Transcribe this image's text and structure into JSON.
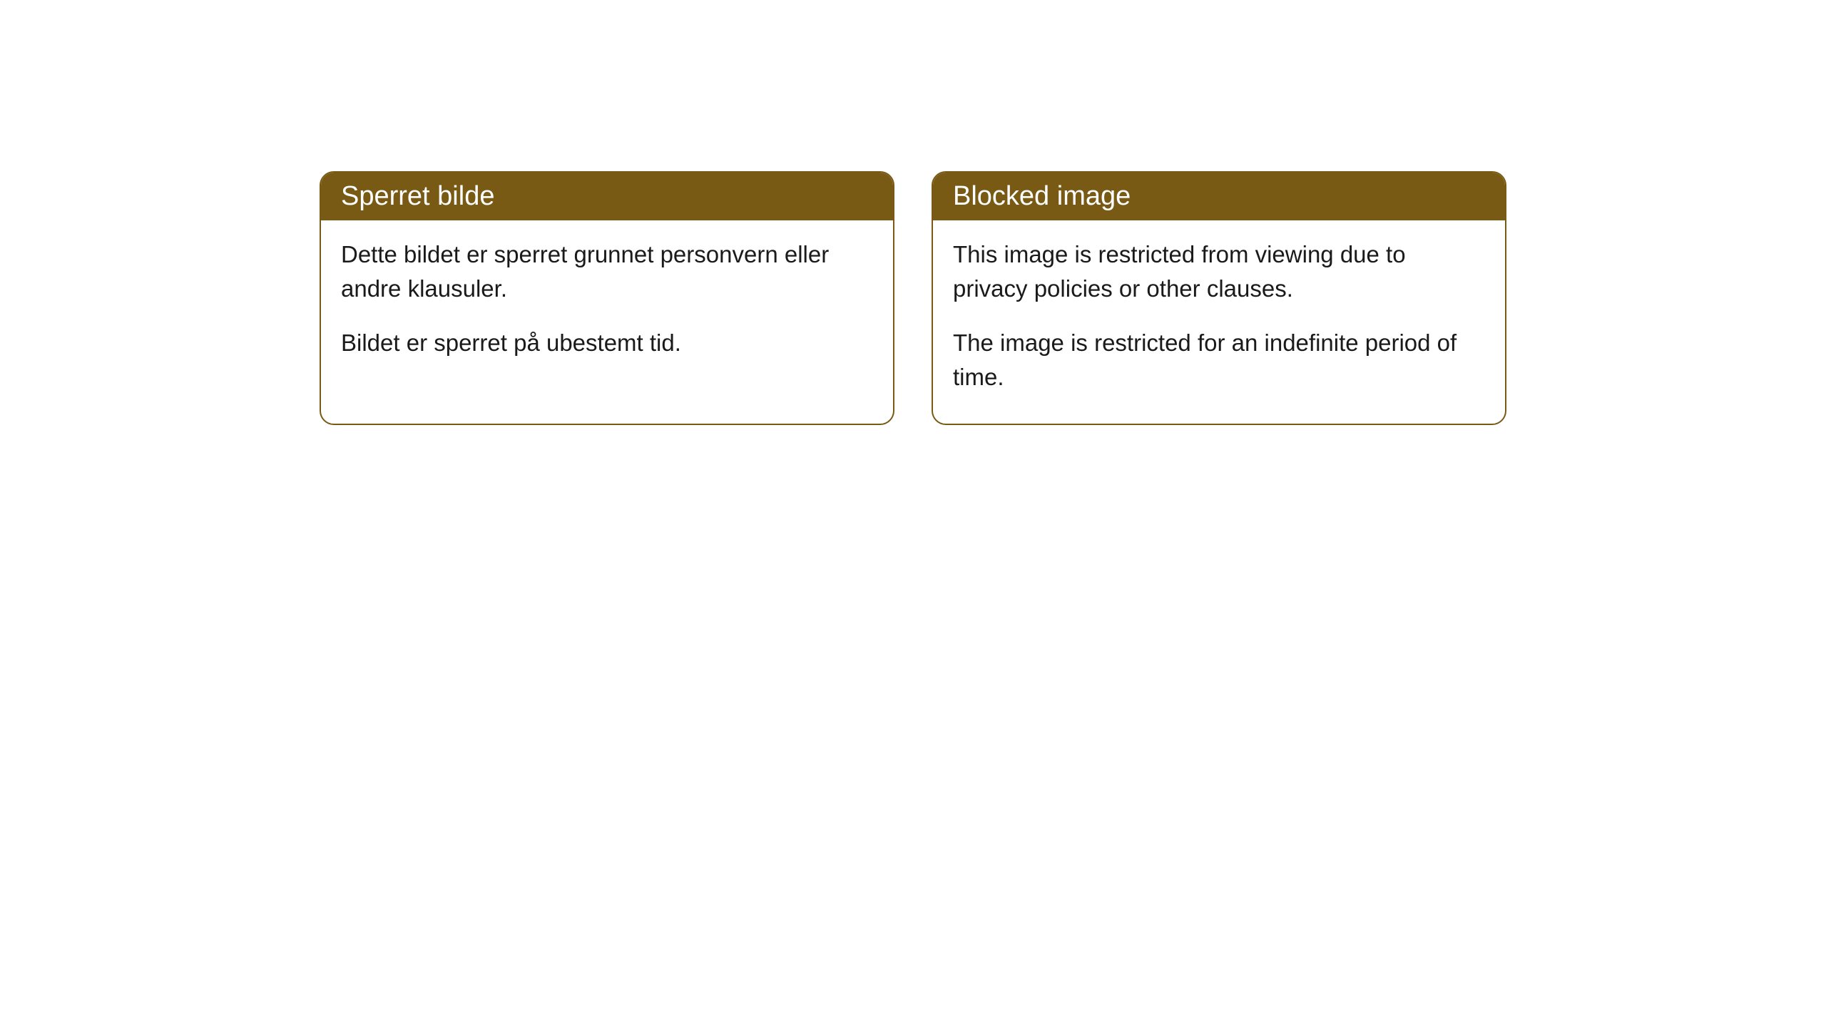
{
  "cards": [
    {
      "title": "Sperret bilde",
      "paragraph1": "Dette bildet er sperret grunnet personvern eller andre klausuler.",
      "paragraph2": "Bildet er sperret på ubestemt tid."
    },
    {
      "title": "Blocked image",
      "paragraph1": "This image is restricted from viewing due to privacy policies or other clauses.",
      "paragraph2": "The image is restricted for an indefinite period of time."
    }
  ],
  "styling": {
    "header_background": "#785a14",
    "header_text_color": "#ffffff",
    "border_color": "#785a14",
    "body_background": "#ffffff",
    "body_text_color": "#1a1a1a",
    "border_radius": 20,
    "header_font_size": 38,
    "body_font_size": 33
  }
}
